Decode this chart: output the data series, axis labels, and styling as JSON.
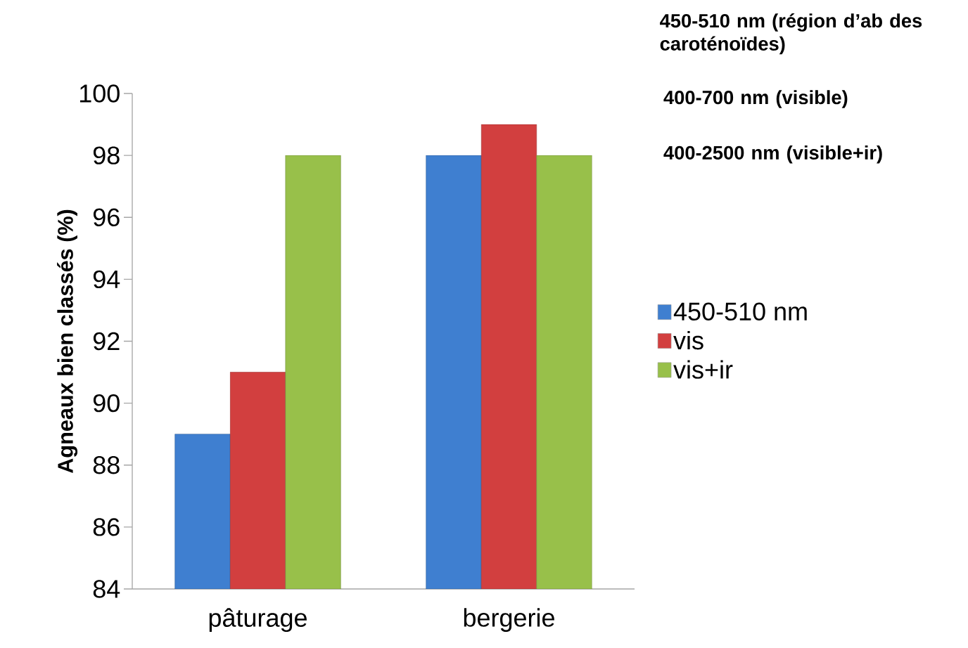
{
  "chart_data": {
    "type": "bar",
    "ylabel": "Agneaux bien classés (%)",
    "categories": [
      "pâturage",
      "bergerie"
    ],
    "series": [
      {
        "name": "450-510 nm",
        "color": "#3f7fd0",
        "values": [
          89,
          98
        ]
      },
      {
        "name": "vis",
        "color": "#d23f3f",
        "values": [
          91,
          99
        ]
      },
      {
        "name": "vis+ir",
        "color": "#98c04a",
        "values": [
          98,
          98
        ]
      }
    ],
    "ylim": [
      84,
      100
    ],
    "yticks": [
      84,
      86,
      88,
      90,
      92,
      94,
      96,
      98,
      100
    ],
    "grid": false,
    "legend": "right",
    "annotations": [
      "450-510 nm (région d’ab des caroténoïdes)",
      "400-700 nm (visible)",
      "400-2500 nm (visible+ir)"
    ]
  }
}
